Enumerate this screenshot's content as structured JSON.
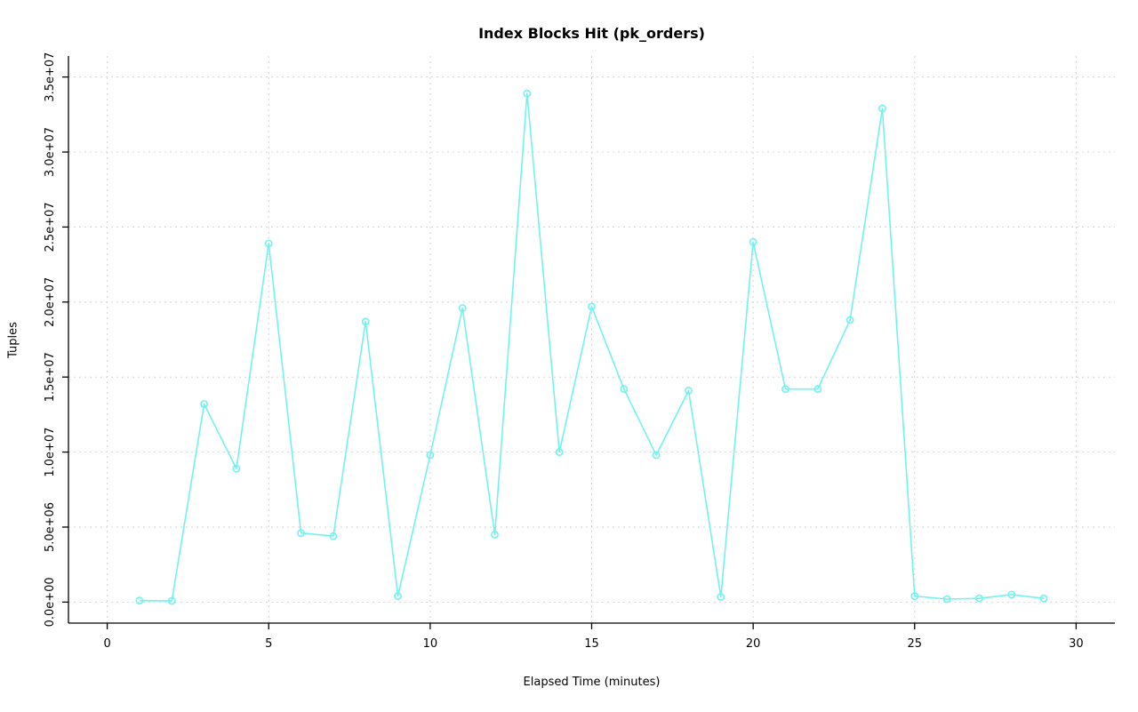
{
  "chart_data": {
    "type": "line",
    "title": "Index Blocks Hit (pk_orders)",
    "xlabel": "Elapsed Time (minutes)",
    "ylabel": "Tuples",
    "x": [
      1,
      2,
      3,
      4,
      5,
      6,
      7,
      8,
      9,
      10,
      11,
      12,
      13,
      14,
      15,
      16,
      17,
      18,
      19,
      20,
      21,
      22,
      23,
      24,
      25,
      26,
      27,
      28,
      29
    ],
    "y": [
      100000,
      80000,
      13200000,
      8900000,
      23900000,
      4600000,
      4400000,
      18700000,
      400000,
      9800000,
      19600000,
      4500000,
      33900000,
      10000000,
      19700000,
      14200000,
      9800000,
      14100000,
      350000,
      24000000,
      14200000,
      14200000,
      18800000,
      32900000,
      400000,
      200000,
      250000,
      500000,
      250000
    ],
    "xlim": [
      0,
      30
    ],
    "ylim": [
      0,
      35000000
    ],
    "x_ticks": [
      0,
      5,
      10,
      15,
      20,
      25,
      30
    ],
    "x_tick_labels": [
      "0",
      "5",
      "10",
      "15",
      "20",
      "25",
      "30"
    ],
    "y_ticks": [
      0,
      5000000,
      10000000,
      15000000,
      20000000,
      25000000,
      30000000,
      35000000
    ],
    "y_tick_labels": [
      "0.0e+00",
      "5.0e+06",
      "1.0e+07",
      "1.5e+07",
      "2.0e+07",
      "2.5e+07",
      "3.0e+07",
      "3.5e+07"
    ],
    "grid": true,
    "legend_position": "none",
    "colors": {
      "line": "#72f2ee",
      "marker": "#72f2ee",
      "grid": "#d4d4d4",
      "axis": "#000000",
      "text": "#000000"
    }
  }
}
